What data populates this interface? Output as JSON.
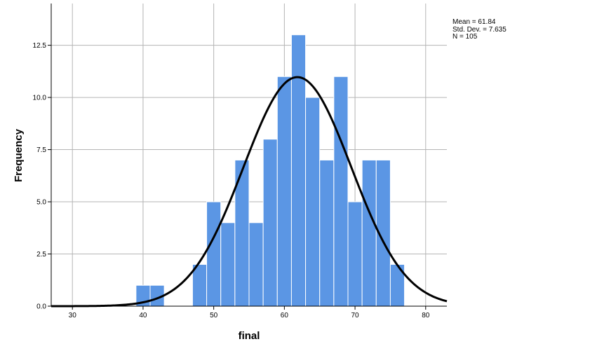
{
  "chart_data": {
    "type": "bar",
    "subtype": "histogram",
    "xlabel": "final",
    "ylabel": "Frequency",
    "xlim": [
      27,
      83
    ],
    "ylim": [
      0,
      14.5
    ],
    "x_ticks": [
      30,
      40,
      50,
      60,
      70,
      80
    ],
    "y_ticks": [
      0.0,
      2.5,
      5.0,
      7.5,
      10.0,
      12.5
    ],
    "y_tick_labels": [
      "0.0",
      "2.5",
      "5.0",
      "7.5",
      "10.0",
      "12.5"
    ],
    "bin_width": 2,
    "bins": [
      {
        "start": 39,
        "end": 41,
        "count": 1
      },
      {
        "start": 41,
        "end": 43,
        "count": 1
      },
      {
        "start": 47,
        "end": 49,
        "count": 2
      },
      {
        "start": 49,
        "end": 51,
        "count": 5
      },
      {
        "start": 51,
        "end": 53,
        "count": 4
      },
      {
        "start": 53,
        "end": 55,
        "count": 7
      },
      {
        "start": 55,
        "end": 57,
        "count": 4
      },
      {
        "start": 57,
        "end": 59,
        "count": 8
      },
      {
        "start": 59,
        "end": 61,
        "count": 11
      },
      {
        "start": 61,
        "end": 63,
        "count": 13
      },
      {
        "start": 63,
        "end": 65,
        "count": 10
      },
      {
        "start": 65,
        "end": 67,
        "count": 7
      },
      {
        "start": 67,
        "end": 69,
        "count": 11
      },
      {
        "start": 69,
        "end": 71,
        "count": 5
      },
      {
        "start": 71,
        "end": 73,
        "count": 7
      },
      {
        "start": 73,
        "end": 75,
        "count": 7
      },
      {
        "start": 75,
        "end": 77,
        "count": 2
      }
    ],
    "normal_curve": {
      "mean": 61.84,
      "sd": 7.635,
      "n": 105
    },
    "bar_color": "#5b96e4",
    "bar_edge_color": "#ffffff",
    "curve_color": "#000000",
    "grid": true,
    "grid_color": "#b4b4b4",
    "legend_position": "top-right",
    "stats": {
      "mean_text": "Mean = 61.84",
      "sd_text": "Std. Dev. = 7.635",
      "n_text": "N = 105"
    }
  }
}
